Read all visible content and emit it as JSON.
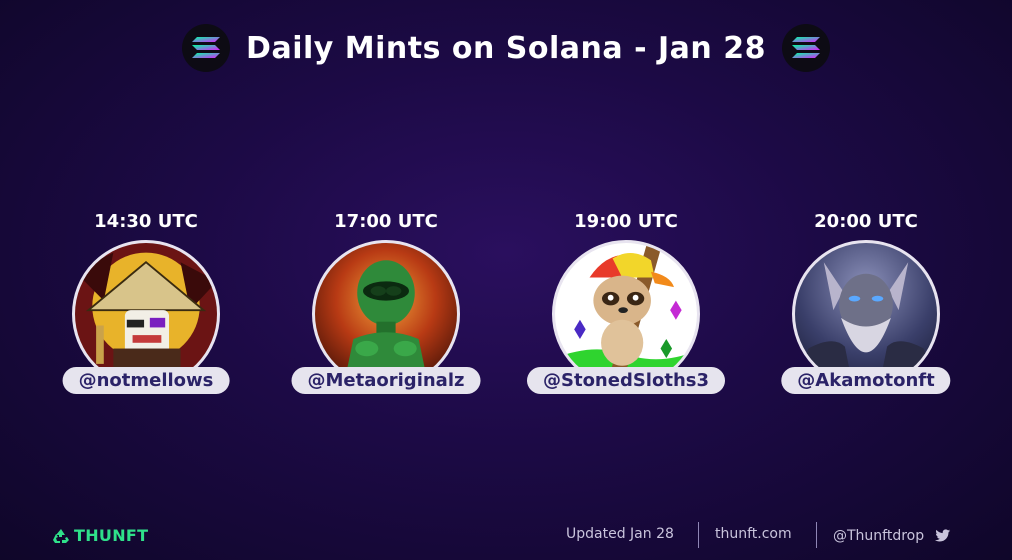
{
  "header": {
    "title": "Daily Mints on Solana - Jan 28",
    "logo_icon": "solana-logo-icon"
  },
  "mints": [
    {
      "time": "14:30 UTC",
      "handle": "@notmellows",
      "avatar_icon": "samurai-avatar-icon"
    },
    {
      "time": "17:00 UTC",
      "handle": "@Metaoriginalz",
      "avatar_icon": "green-alien-avatar-icon"
    },
    {
      "time": "19:00 UTC",
      "handle": "@StonedSloths3",
      "avatar_icon": "sloth-avatar-icon"
    },
    {
      "time": "20:00 UTC",
      "handle": "@Akamotonft",
      "avatar_icon": "warrior-avatar-icon"
    }
  ],
  "footer": {
    "brand": "THUNFT",
    "updated": "Updated Jan 28",
    "site": "thunft.com",
    "twitter_handle": "@Thunftdrop"
  },
  "colors": {
    "brand_green": "#2fe08a",
    "handle_text": "#2b2368",
    "background": "#1c0a45"
  }
}
